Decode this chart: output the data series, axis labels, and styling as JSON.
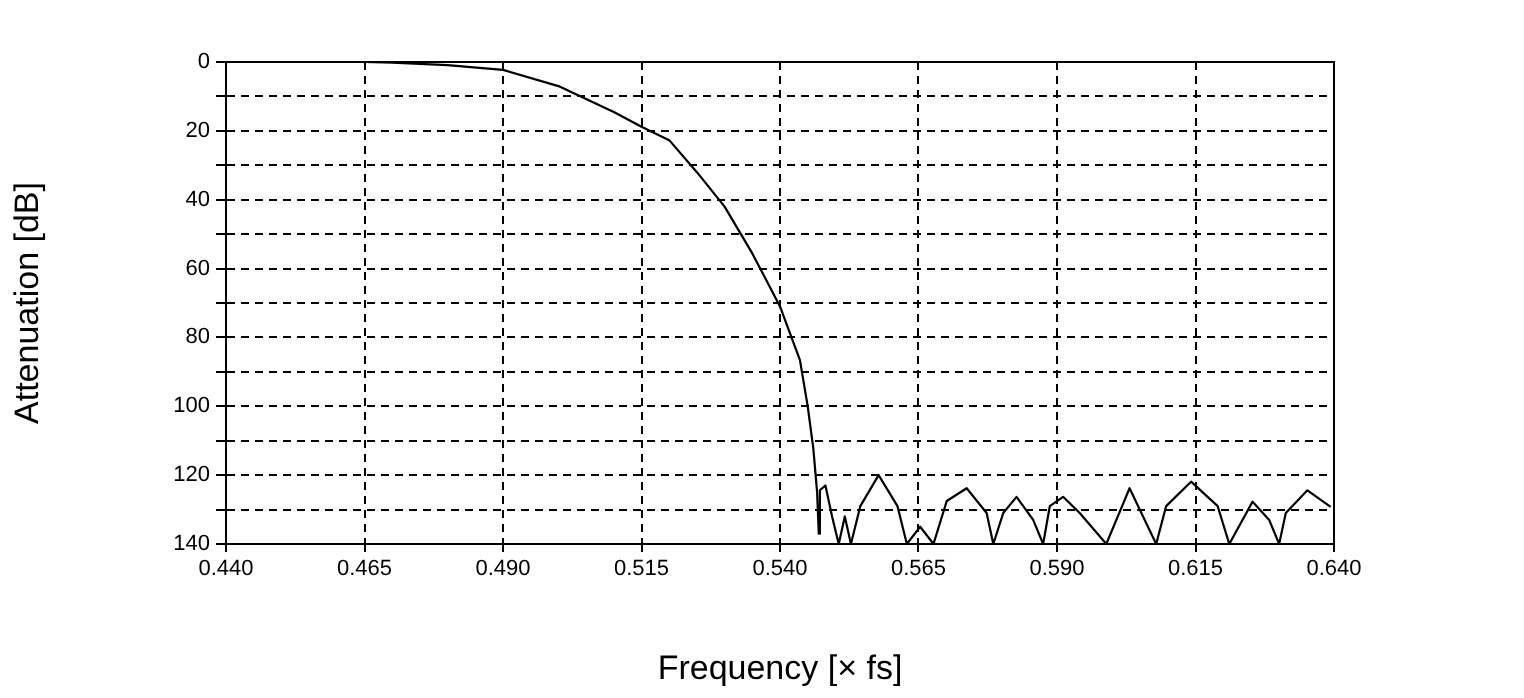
{
  "chart_data": {
    "type": "line",
    "xlabel": "Frequency [× fs]",
    "ylabel": "Attenuation [dB]",
    "x": [
      0.44,
      0.465,
      0.47,
      0.48,
      0.49,
      0.5,
      0.51,
      0.515,
      0.52,
      0.525,
      0.53,
      0.535,
      0.54,
      0.5436,
      0.545,
      0.546,
      0.5467,
      0.547,
      0.5472,
      0.5482,
      0.5494,
      0.5506,
      0.5517,
      0.5528,
      0.5545,
      0.5578,
      0.5612,
      0.5629,
      0.5653,
      0.5677,
      0.5701,
      0.5737,
      0.5773,
      0.5785,
      0.5803,
      0.5827,
      0.5857,
      0.5875,
      0.5887,
      0.5911,
      0.5941,
      0.5989,
      0.6031,
      0.6079,
      0.6097,
      0.6142,
      0.619,
      0.6211,
      0.6253,
      0.6283,
      0.6301,
      0.6313,
      0.6352,
      0.6394
    ],
    "series": [
      {
        "color": "#000000",
        "values": [
          0,
          0,
          0.2,
          0.9,
          2.3,
          7,
          14.5,
          18.8,
          22.7,
          32,
          42,
          55.6,
          71,
          86.6,
          100,
          112,
          125,
          137,
          124.4,
          123,
          132,
          140,
          132,
          140,
          129,
          120,
          129,
          140,
          135,
          140,
          127.5,
          123.8,
          131,
          140,
          131,
          126.3,
          133,
          140,
          129,
          126.3,
          131,
          140,
          123.8,
          140,
          129,
          121.9,
          129,
          140,
          127.7,
          133,
          140,
          131,
          124.4,
          129.2
        ]
      }
    ],
    "xlim": [
      0.44,
      0.64
    ],
    "xticks": [
      {
        "value": 0.44,
        "label": "0.440"
      },
      {
        "value": 0.465,
        "label": "0.465"
      },
      {
        "value": 0.49,
        "label": "0.490"
      },
      {
        "value": 0.515,
        "label": "0.515"
      },
      {
        "value": 0.54,
        "label": "0.540"
      },
      {
        "value": 0.565,
        "label": "0.565"
      },
      {
        "value": 0.59,
        "label": "0.590"
      },
      {
        "value": 0.615,
        "label": "0.615"
      },
      {
        "value": 0.64,
        "label": "0.640"
      }
    ],
    "ylim": [
      140,
      0
    ],
    "yticks": [
      0,
      {
        "value": 10,
        "label": null
      },
      20,
      {
        "value": 30,
        "label": null
      },
      40,
      {
        "value": 50,
        "label": null
      },
      60,
      {
        "value": 70,
        "label": null
      },
      80,
      {
        "value": 90,
        "label": null
      },
      100,
      {
        "value": 110,
        "label": null
      },
      120,
      {
        "value": 130,
        "label": null
      },
      140
    ],
    "grid": true,
    "legend": false,
    "marker": "none",
    "line_style": "solid"
  }
}
